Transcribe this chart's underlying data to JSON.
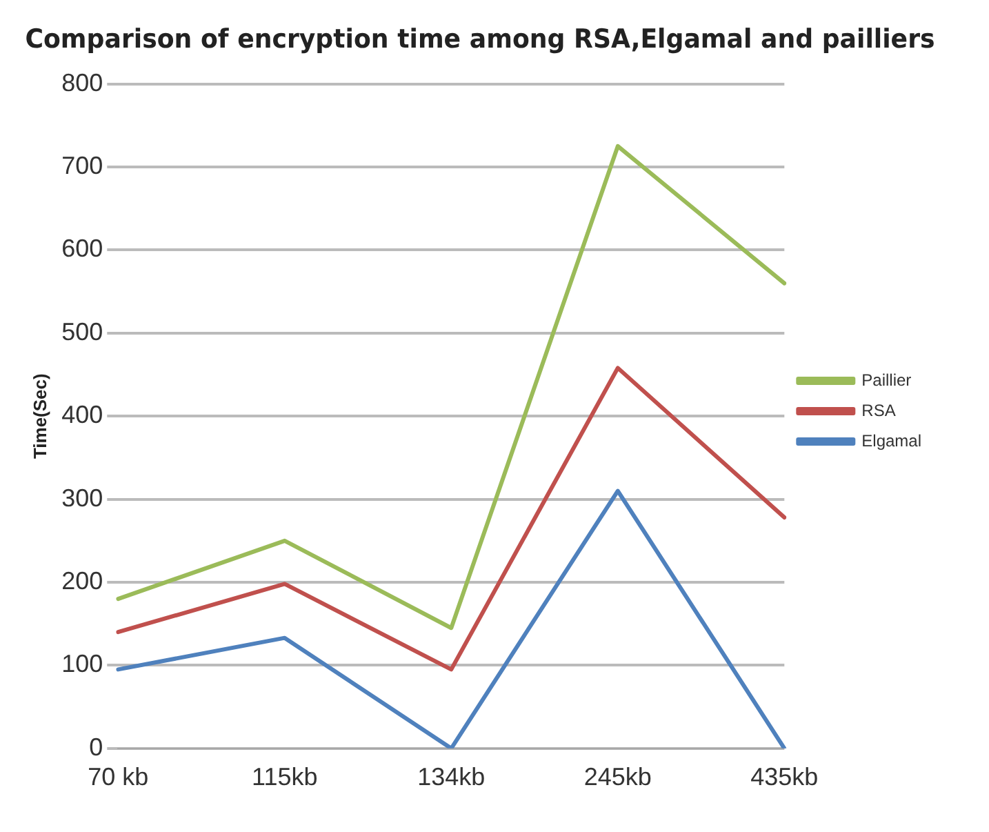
{
  "chart_data": {
    "type": "line",
    "title": "Comparison of encryption time among RSA,Elgamal and pailliers",
    "ylabel": "Time(Sec)",
    "categories": [
      "70 kb",
      "115kb",
      "134kb",
      "245kb",
      "435kb"
    ],
    "series": [
      {
        "name": "Paillier",
        "color": "#9bbb59",
        "values": [
          180,
          250,
          145,
          725,
          560
        ]
      },
      {
        "name": "RSA",
        "color": "#c0504d",
        "values": [
          140,
          198,
          95,
          458,
          278
        ]
      },
      {
        "name": "Elgamal",
        "color": "#4f81bd",
        "values": [
          95,
          133,
          0,
          310,
          0
        ]
      }
    ],
    "ylim": [
      0,
      800
    ],
    "yticks": [
      0,
      100,
      200,
      300,
      400,
      500,
      600,
      700,
      800
    ],
    "grid": "y",
    "legend": "right",
    "marker": "none"
  }
}
